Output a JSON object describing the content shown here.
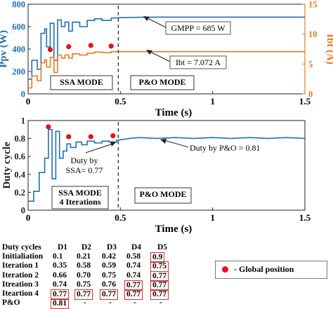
{
  "chart_data": [
    {
      "type": "line",
      "xlabel": "Time (s)",
      "ylabel": "Ppv (W)",
      "ylabel_right": "Ibt (A)",
      "xlim": [
        0,
        1.5
      ],
      "ylim": [
        0,
        800
      ],
      "ylim_right": [
        0,
        15
      ],
      "xticks": [
        "0",
        "0.5",
        "1",
        "1.5"
      ],
      "yticks": [
        "0",
        "200",
        "400",
        "600",
        "800"
      ],
      "yticks_right": [
        "0",
        "5",
        "10",
        "15"
      ],
      "colors": {
        "ppv": "#1f6fb5",
        "ibt": "#e07b25",
        "global": "#e3101b",
        "axis_right": "#e07b25"
      },
      "series": [
        {
          "name": "Ppv",
          "axis": "left",
          "x": [
            0,
            0.02,
            0.02,
            0.05,
            0.05,
            0.07,
            0.07,
            0.09,
            0.09,
            0.1,
            0.1,
            0.12,
            0.12,
            0.14,
            0.14,
            0.16,
            0.16,
            0.18,
            0.18,
            0.2,
            0.2,
            0.22,
            0.22,
            0.24,
            0.24,
            0.28,
            0.28,
            0.32,
            0.32,
            0.36,
            0.36,
            0.4,
            0.4,
            0.45,
            0.45,
            0.5,
            0.6,
            0.7,
            0.8,
            1.0,
            1.5
          ],
          "y": [
            130,
            130,
            300,
            300,
            220,
            220,
            540,
            540,
            580,
            580,
            420,
            420,
            630,
            630,
            300,
            300,
            660,
            660,
            600,
            600,
            640,
            640,
            560,
            560,
            640,
            640,
            600,
            600,
            655,
            655,
            670,
            670,
            655,
            655,
            675,
            680,
            683,
            685,
            685,
            685,
            685
          ]
        },
        {
          "name": "Ibt",
          "axis": "right",
          "x": [
            0,
            0.02,
            0.02,
            0.05,
            0.05,
            0.07,
            0.07,
            0.09,
            0.09,
            0.1,
            0.1,
            0.12,
            0.12,
            0.14,
            0.14,
            0.16,
            0.16,
            0.18,
            0.18,
            0.2,
            0.2,
            0.22,
            0.22,
            0.24,
            0.24,
            0.28,
            0.28,
            0.32,
            0.32,
            0.36,
            0.36,
            0.4,
            0.4,
            0.45,
            0.45,
            0.5,
            0.6,
            0.7,
            0.8,
            1.0,
            1.5
          ],
          "y": [
            1.0,
            1.0,
            3.0,
            3.0,
            2.2,
            2.2,
            5.2,
            5.2,
            5.7,
            5.7,
            4.5,
            4.5,
            6.1,
            6.1,
            3.6,
            3.6,
            6.5,
            6.5,
            6.0,
            6.0,
            6.5,
            6.5,
            6.0,
            6.0,
            6.7,
            6.7,
            6.5,
            6.5,
            6.8,
            6.8,
            7.0,
            7.0,
            6.9,
            6.9,
            7.05,
            7.07,
            7.072,
            7.072,
            7.072,
            7.072,
            7.072
          ]
        }
      ],
      "global_points_right": {
        "x": [
          0.12,
          0.22,
          0.34,
          0.45
        ],
        "y": [
          7.4,
          7.9,
          8.1,
          8.0
        ]
      },
      "mode_divider_x": 0.5,
      "annotations": {
        "gmpp": "GMPP = 685 W",
        "ibt": "Ibt = 7.072 A",
        "ssa_mode": "SSA MODE",
        "po_mode": "P&O MODE"
      }
    },
    {
      "type": "line",
      "xlabel": "Time (s)",
      "ylabel": "Duty cycle",
      "xlim": [
        0,
        1.5
      ],
      "ylim": [
        0,
        1
      ],
      "xticks": [
        "0",
        "0.5",
        "1",
        "1.5"
      ],
      "yticks": [
        "0",
        "0.2",
        "0.4",
        "0.6",
        "0.8",
        "1"
      ],
      "colors": {
        "duty": "#1f6fb5",
        "global": "#e3101b"
      },
      "series": [
        {
          "name": "Duty",
          "x": [
            0,
            0.03,
            0.03,
            0.06,
            0.06,
            0.09,
            0.09,
            0.11,
            0.11,
            0.13,
            0.13,
            0.15,
            0.15,
            0.17,
            0.17,
            0.19,
            0.19,
            0.21,
            0.21,
            0.23,
            0.23,
            0.26,
            0.26,
            0.29,
            0.29,
            0.32,
            0.32,
            0.36,
            0.36,
            0.4,
            0.4,
            0.44,
            0.44,
            0.48,
            0.48,
            0.55,
            0.6,
            0.7,
            0.8,
            0.9,
            1.0,
            1.1,
            1.2,
            1.3,
            1.4,
            1.5
          ],
          "y": [
            0.1,
            0.1,
            0.21,
            0.21,
            0.42,
            0.42,
            0.58,
            0.58,
            0.9,
            0.9,
            0.35,
            0.35,
            0.88,
            0.88,
            0.58,
            0.58,
            0.66,
            0.66,
            0.74,
            0.74,
            0.7,
            0.7,
            0.76,
            0.76,
            0.73,
            0.73,
            0.77,
            0.77,
            0.75,
            0.75,
            0.77,
            0.77,
            0.76,
            0.76,
            0.78,
            0.8,
            0.81,
            0.8,
            0.81,
            0.8,
            0.81,
            0.8,
            0.81,
            0.8,
            0.81,
            0.8
          ]
        }
      ],
      "global_points": {
        "x": [
          0.11,
          0.22,
          0.34,
          0.46
        ],
        "y": [
          0.93,
          0.82,
          0.82,
          0.83
        ]
      },
      "mode_divider_x": 0.5,
      "annotations": {
        "duty_po": "Duty by P&O = 0.81",
        "duty_ssa_1": "Duty by",
        "duty_ssa_2": "SSA= 0.77",
        "ssa_mode": "SSA MODE",
        "iterations": "4 Iterations",
        "po_mode": "P&O MODE"
      }
    }
  ],
  "table": {
    "headers": [
      "Duty cycles",
      "D1",
      "D2",
      "D3",
      "D4",
      "D5"
    ],
    "rows": [
      {
        "label": "Initialiation",
        "cells": [
          "0.1",
          "0.21",
          "0.42",
          "0.58",
          "0.9"
        ],
        "boxed": [
          false,
          false,
          false,
          false,
          true
        ]
      },
      {
        "label": "Iteration 1",
        "cells": [
          "0.35",
          "0.58",
          "0.59",
          "0.74",
          "0.75"
        ],
        "boxed": [
          false,
          false,
          false,
          false,
          true
        ]
      },
      {
        "label": "Iteration 2",
        "cells": [
          "0.66",
          "0.70",
          "0.75",
          "0.74",
          "0.77"
        ],
        "boxed": [
          false,
          false,
          false,
          false,
          true
        ]
      },
      {
        "label": "Itreation 3",
        "cells": [
          "0.74",
          "0.75",
          "0.76",
          "0.77",
          "0.77"
        ],
        "boxed": [
          false,
          false,
          false,
          true,
          true
        ]
      },
      {
        "label": "Iteartion 4",
        "cells": [
          "0.77",
          "0.77",
          "0.77",
          "0.77",
          "0.77"
        ],
        "boxed": [
          true,
          true,
          true,
          true,
          true
        ]
      },
      {
        "label": "P&O",
        "cells": [
          "0.81",
          "-",
          "-",
          "-",
          "-"
        ],
        "boxed": [
          true,
          false,
          false,
          false,
          false
        ]
      }
    ],
    "legend": {
      "label": "- Global position",
      "marker_color": "#e3101b"
    }
  }
}
